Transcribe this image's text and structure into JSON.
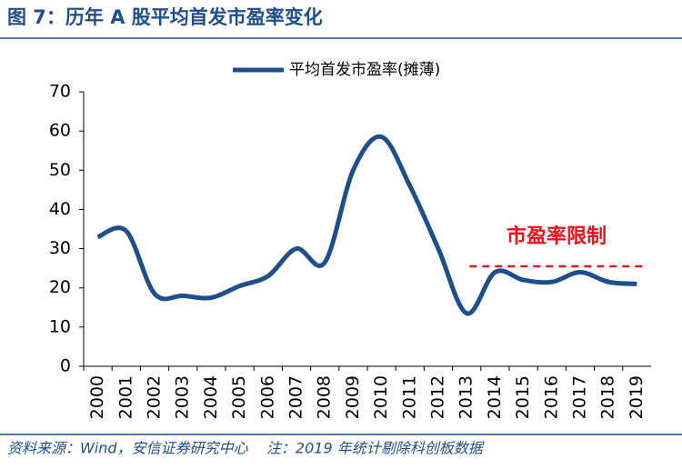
{
  "chart_data": {
    "type": "line",
    "title": "图 7：历年 A 股平均首发市盈率变化",
    "categories": [
      "2000",
      "2001",
      "2002",
      "2003",
      "2004",
      "2005",
      "2006",
      "2007",
      "2008",
      "2009",
      "2010",
      "2011",
      "2012",
      "2013",
      "2014",
      "2015",
      "2016",
      "2017",
      "2018",
      "2019"
    ],
    "series": [
      {
        "name": "平均首发市盈率(摊薄)",
        "color": "#1f4e8c",
        "values": [
          33,
          34.5,
          18.5,
          18,
          17.5,
          20.5,
          23,
          30,
          26.5,
          50,
          58.5,
          46,
          30,
          13.5,
          24,
          22,
          21.5,
          24,
          21.5,
          21
        ]
      }
    ],
    "ylim": [
      0,
      70
    ],
    "yticks": [
      0,
      10,
      20,
      30,
      40,
      50,
      60,
      70
    ],
    "annotation": {
      "text": "市盈率限制",
      "value": 25.5,
      "color": "#e8141a"
    },
    "source": "资料来源：Wind，安信证券研究中心    注：2019 年统计剔除科创板数据",
    "legend": "top",
    "smooth": true
  }
}
